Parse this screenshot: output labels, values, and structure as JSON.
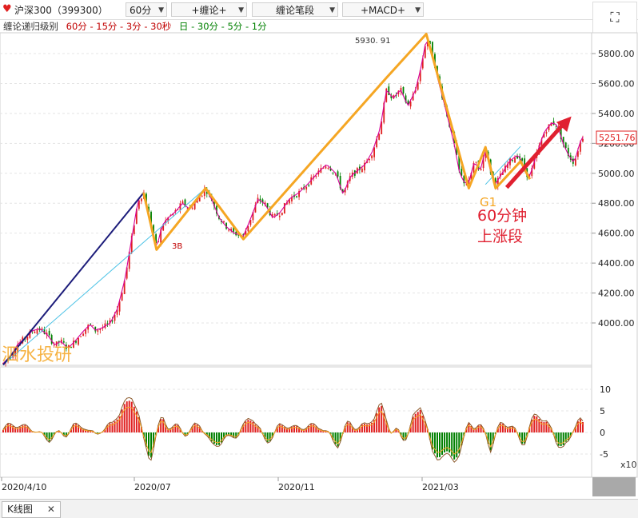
{
  "toolbar": {
    "symbol": "沪深300（399300）",
    "period": "60分",
    "btn_chanlun_plus": "+缠论+",
    "btn_bi_duan": "缠论笔段",
    "btn_macd": "+MACD+",
    "fullscreen_icon": "expand-icon"
  },
  "levels": {
    "label": "缠论递归级别",
    "minute_levels": "60分 - 15分 - 3分 - 30秒",
    "daily_levels": "日 - 30分 - 5分 - 1分"
  },
  "annotations": {
    "peak_value": "5930. 91",
    "last_price": "5251.76",
    "label_3b": "3B",
    "label_g1": "G1",
    "up_segment_line1": "60分钟",
    "up_segment_line2": "上涨段",
    "watermark": "泗水投研"
  },
  "colors": {
    "up": "#e02020",
    "down": "#008000",
    "segment": "#f5a623",
    "trend": "#1c1c7a",
    "channel": "#4ec3e6",
    "arrow": "#e02030",
    "price_line": "#d6009a"
  },
  "chart_data": [
    {
      "type": "line",
      "name": "candlestick-price",
      "x_ticks": [
        "2020/4/10",
        "2020/07",
        "2020/11",
        "2021/03"
      ],
      "y_ticks": [
        4000,
        4200,
        4400,
        4600,
        4800,
        5000,
        5200,
        5400,
        5600,
        5800
      ],
      "y_tick_labels": [
        "4000.00",
        "4200.00",
        "4400.00",
        "4600.00",
        "4800.00",
        "5000.00",
        "5200.00",
        "5400.00",
        "5600.00",
        "5800.00"
      ],
      "ylim": [
        3730,
        5990
      ],
      "n_bars": 240,
      "bi_segments": [
        {
          "i": 152,
          "v": 4870
        },
        {
          "i": 166,
          "v": 4490
        },
        {
          "i": 219,
          "v": 4900
        },
        {
          "i": 260,
          "v": 4560
        },
        {
          "i": 415,
          "v": 5640
        },
        {
          "i": 458,
          "v": 5930.91
        },
        {
          "i": 504,
          "v": 4900
        },
        {
          "i": 522,
          "v": 5175
        },
        {
          "i": 533,
          "v": 4900
        },
        {
          "i": 560,
          "v": 5080
        },
        {
          "i": 570,
          "v": 4960
        }
      ],
      "trend_line": [
        {
          "i": 0,
          "v": 3720
        },
        {
          "i": 152,
          "v": 4870
        }
      ],
      "channel_lines": [
        [
          {
            "i": 0,
            "v": 3720
          },
          {
            "i": 219,
            "v": 4900
          }
        ],
        [
          {
            "i": 522,
            "v": 4925
          },
          {
            "i": 560,
            "v": 5180
          }
        ]
      ],
      "up_arrow": [
        {
          "i": 545,
          "v": 4905
        },
        {
          "i": 615,
          "v": 5380
        }
      ],
      "price_path": [
        [
          0,
          3730
        ],
        [
          8,
          3780
        ],
        [
          16,
          3860
        ],
        [
          24,
          3900
        ],
        [
          32,
          3950
        ],
        [
          40,
          3960
        ],
        [
          48,
          3920
        ],
        [
          56,
          3850
        ],
        [
          62,
          3880
        ],
        [
          70,
          3830
        ],
        [
          78,
          3880
        ],
        [
          86,
          3940
        ],
        [
          94,
          3990
        ],
        [
          100,
          3950
        ],
        [
          108,
          3970
        ],
        [
          116,
          4000
        ],
        [
          124,
          4100
        ],
        [
          132,
          4300
        ],
        [
          140,
          4600
        ],
        [
          146,
          4820
        ],
        [
          152,
          4870
        ],
        [
          158,
          4720
        ],
        [
          162,
          4600
        ],
        [
          166,
          4500
        ],
        [
          172,
          4650
        ],
        [
          178,
          4700
        ],
        [
          186,
          4740
        ],
        [
          194,
          4800
        ],
        [
          202,
          4760
        ],
        [
          210,
          4820
        ],
        [
          219,
          4900
        ],
        [
          226,
          4820
        ],
        [
          234,
          4700
        ],
        [
          242,
          4640
        ],
        [
          250,
          4600
        ],
        [
          260,
          4580
        ],
        [
          268,
          4700
        ],
        [
          276,
          4830
        ],
        [
          284,
          4790
        ],
        [
          292,
          4700
        ],
        [
          300,
          4740
        ],
        [
          310,
          4830
        ],
        [
          320,
          4870
        ],
        [
          330,
          4930
        ],
        [
          340,
          5000
        ],
        [
          350,
          5060
        ],
        [
          360,
          5000
        ],
        [
          368,
          4860
        ],
        [
          376,
          4980
        ],
        [
          384,
          5020
        ],
        [
          392,
          5060
        ],
        [
          400,
          5150
        ],
        [
          408,
          5300
        ],
        [
          415,
          5560
        ],
        [
          422,
          5500
        ],
        [
          430,
          5560
        ],
        [
          438,
          5450
        ],
        [
          446,
          5550
        ],
        [
          452,
          5700
        ],
        [
          458,
          5900
        ],
        [
          464,
          5820
        ],
        [
          470,
          5640
        ],
        [
          476,
          5500
        ],
        [
          482,
          5350
        ],
        [
          488,
          5200
        ],
        [
          494,
          5000
        ],
        [
          500,
          4930
        ],
        [
          504,
          4940
        ],
        [
          510,
          5080
        ],
        [
          516,
          5010
        ],
        [
          522,
          5160
        ],
        [
          528,
          5000
        ],
        [
          533,
          4930
        ],
        [
          540,
          5000
        ],
        [
          548,
          5080
        ],
        [
          556,
          5120
        ],
        [
          560,
          5100
        ],
        [
          566,
          5000
        ],
        [
          570,
          4980
        ],
        [
          578,
          5140
        ],
        [
          586,
          5280
        ],
        [
          594,
          5340
        ],
        [
          600,
          5320
        ],
        [
          606,
          5200
        ],
        [
          612,
          5120
        ],
        [
          618,
          5070
        ],
        [
          624,
          5200
        ],
        [
          628,
          5251.76
        ]
      ]
    },
    {
      "type": "bar",
      "name": "macd",
      "y_ticks": [
        -5,
        0,
        5,
        10
      ],
      "y_tick_labels": [
        "-5",
        "0",
        "5",
        "10"
      ],
      "unit_label": "x10",
      "ylim": [
        -9,
        15
      ]
    }
  ]
}
